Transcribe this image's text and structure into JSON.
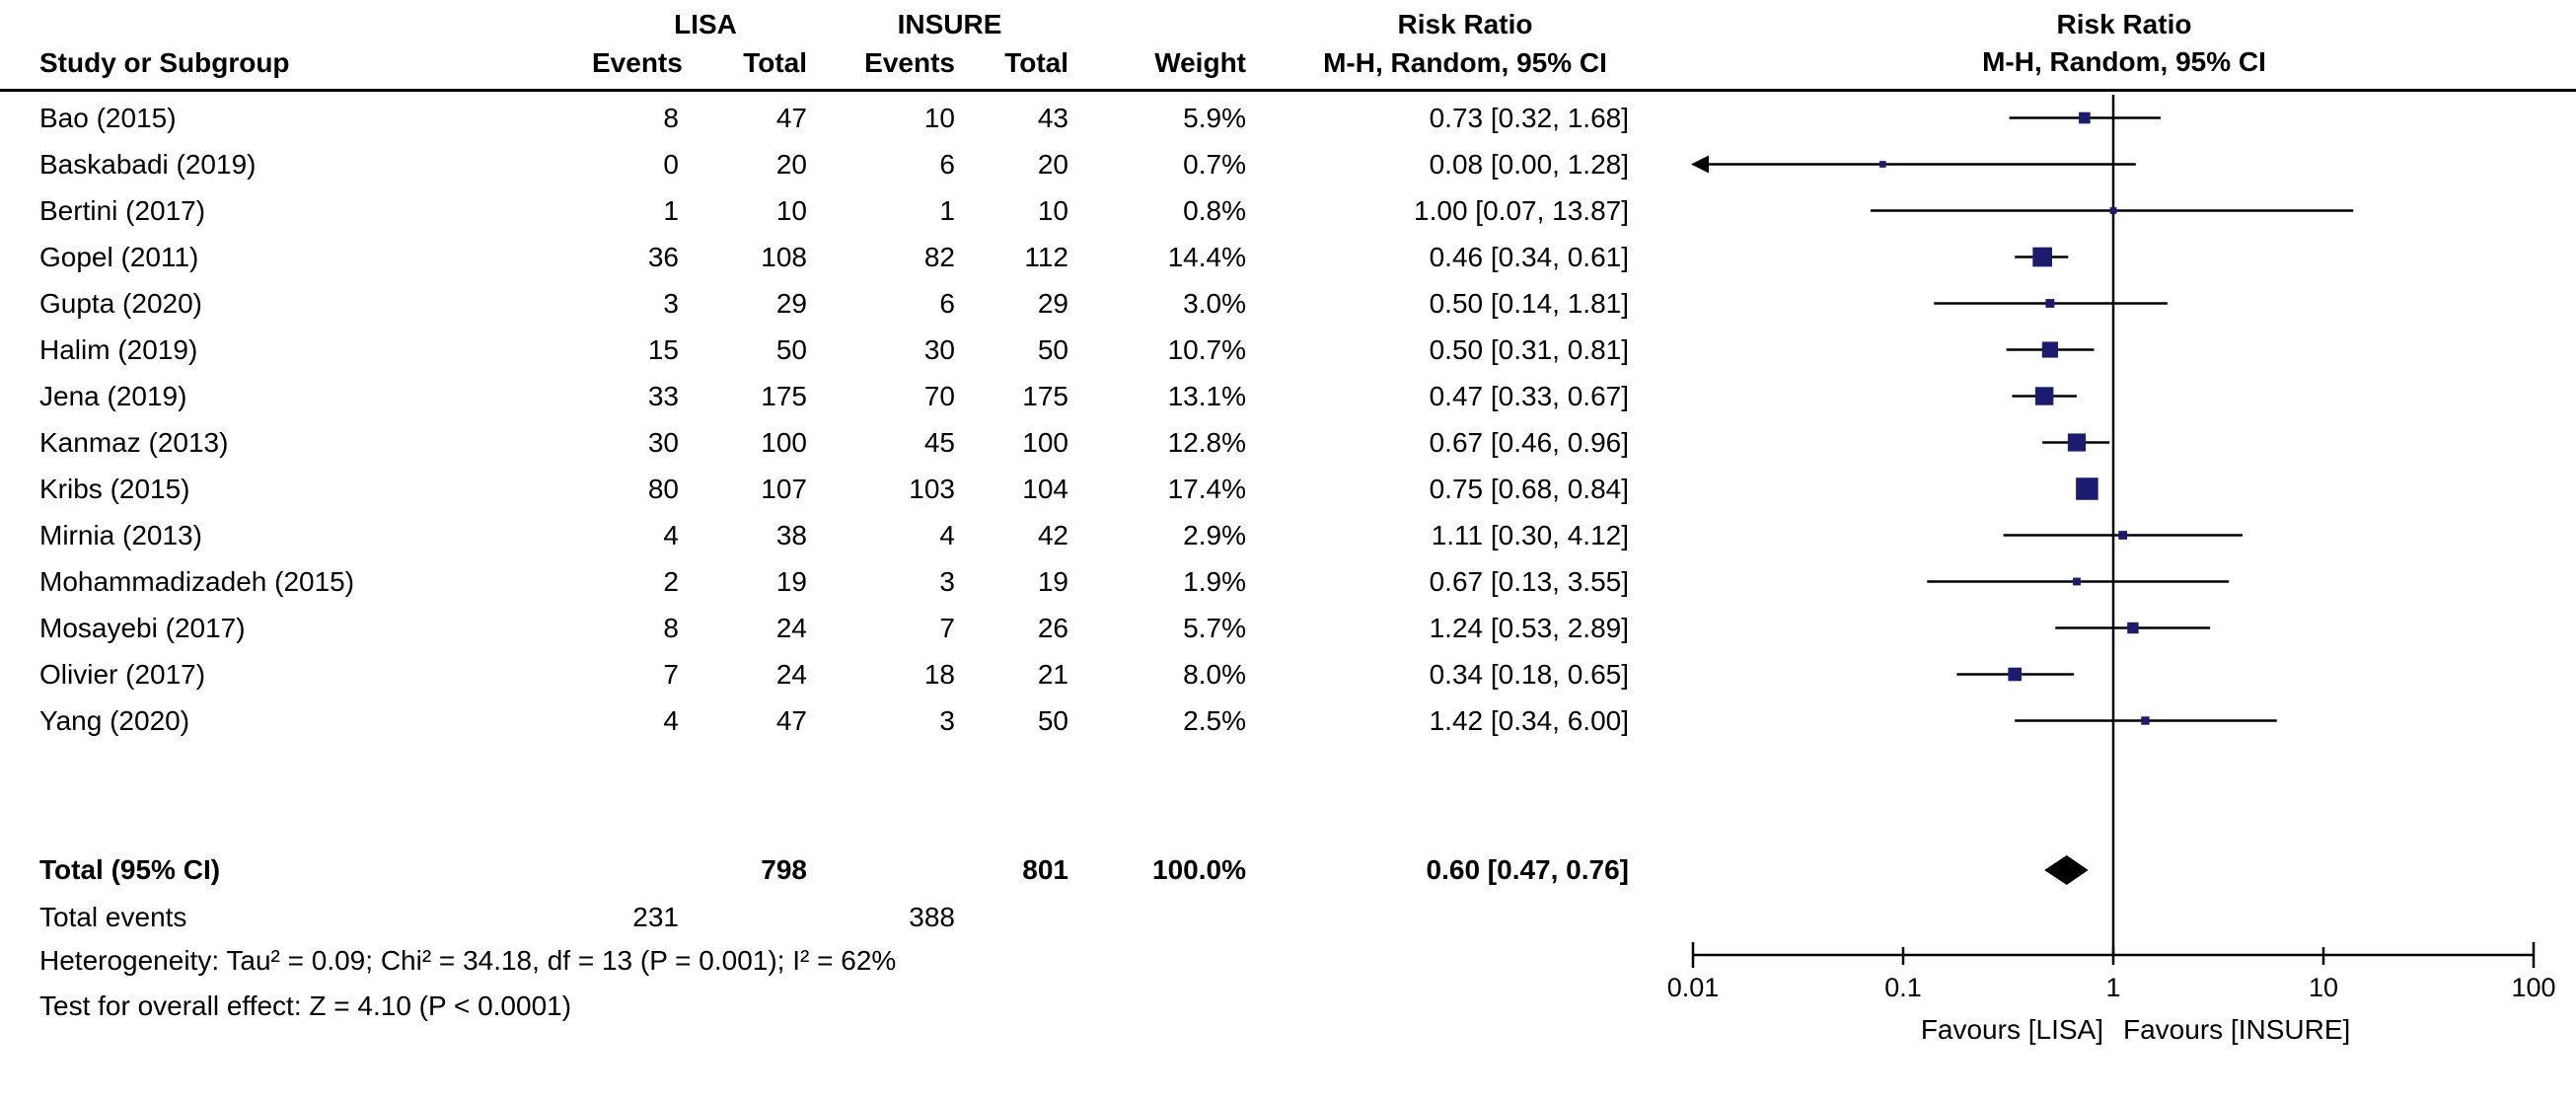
{
  "header": {
    "group1": "LISA",
    "group2": "INSURE",
    "rr_text_col": "Risk Ratio",
    "rr_plot_col": "Risk Ratio",
    "study_col": "Study or Subgroup",
    "events_col1": "Events",
    "total_col1": "Total",
    "events_col2": "Events",
    "total_col2": "Total",
    "weight_col": "Weight",
    "mh_ci_col": "M-H, Random, 95% CI",
    "mh_ci_plot_col": "M-H, Random, 95% CI"
  },
  "chart_data": {
    "type": "scatter",
    "subtype": "forest_plot_meta_analysis",
    "effect_measure": "Risk Ratio",
    "model": "M-H, Random, 95% CI",
    "x_scale": "log10",
    "x_range": [
      0.01,
      100
    ],
    "x_ticks": [
      "0.01",
      "0.1",
      "1",
      "10",
      "100"
    ],
    "favours_left": "Favours [LISA]",
    "favours_right": "Favours [INSURE]",
    "marker_color": "#1b1b6f",
    "studies": [
      {
        "name": "Bao (2015)",
        "events1": "8",
        "total1": "47",
        "events2": "10",
        "total2": "43",
        "weight": "5.9%",
        "weight_val": 5.9,
        "rr": 0.73,
        "lo": 0.32,
        "hi": 1.68,
        "ci_label": "0.73 [0.32, 1.68]",
        "arrow_low": false
      },
      {
        "name": "Baskabadi (2019)",
        "events1": "0",
        "total1": "20",
        "events2": "6",
        "total2": "20",
        "weight": "0.7%",
        "weight_val": 0.7,
        "rr": 0.08,
        "lo": 0.0,
        "hi": 1.28,
        "ci_label": "0.08 [0.00, 1.28]",
        "arrow_low": true
      },
      {
        "name": "Bertini (2017)",
        "events1": "1",
        "total1": "10",
        "events2": "1",
        "total2": "10",
        "weight": "0.8%",
        "weight_val": 0.8,
        "rr": 1.0,
        "lo": 0.07,
        "hi": 13.87,
        "ci_label": "1.00 [0.07, 13.87]",
        "arrow_low": false
      },
      {
        "name": "Gopel (2011)",
        "events1": "36",
        "total1": "108",
        "events2": "82",
        "total2": "112",
        "weight": "14.4%",
        "weight_val": 14.4,
        "rr": 0.46,
        "lo": 0.34,
        "hi": 0.61,
        "ci_label": "0.46 [0.34, 0.61]",
        "arrow_low": false
      },
      {
        "name": "Gupta (2020)",
        "events1": "3",
        "total1": "29",
        "events2": "6",
        "total2": "29",
        "weight": "3.0%",
        "weight_val": 3.0,
        "rr": 0.5,
        "lo": 0.14,
        "hi": 1.81,
        "ci_label": "0.50 [0.14, 1.81]",
        "arrow_low": false
      },
      {
        "name": "Halim (2019)",
        "events1": "15",
        "total1": "50",
        "events2": "30",
        "total2": "50",
        "weight": "10.7%",
        "weight_val": 10.7,
        "rr": 0.5,
        "lo": 0.31,
        "hi": 0.81,
        "ci_label": "0.50 [0.31, 0.81]",
        "arrow_low": false
      },
      {
        "name": "Jena (2019)",
        "events1": "33",
        "total1": "175",
        "events2": "70",
        "total2": "175",
        "weight": "13.1%",
        "weight_val": 13.1,
        "rr": 0.47,
        "lo": 0.33,
        "hi": 0.67,
        "ci_label": "0.47 [0.33, 0.67]",
        "arrow_low": false
      },
      {
        "name": "Kanmaz (2013)",
        "events1": "30",
        "total1": "100",
        "events2": "45",
        "total2": "100",
        "weight": "12.8%",
        "weight_val": 12.8,
        "rr": 0.67,
        "lo": 0.46,
        "hi": 0.96,
        "ci_label": "0.67 [0.46, 0.96]",
        "arrow_low": false
      },
      {
        "name": "Kribs (2015)",
        "events1": "80",
        "total1": "107",
        "events2": "103",
        "total2": "104",
        "weight": "17.4%",
        "weight_val": 17.4,
        "rr": 0.75,
        "lo": 0.68,
        "hi": 0.84,
        "ci_label": "0.75 [0.68, 0.84]",
        "arrow_low": false
      },
      {
        "name": "Mirnia (2013)",
        "events1": "4",
        "total1": "38",
        "events2": "4",
        "total2": "42",
        "weight": "2.9%",
        "weight_val": 2.9,
        "rr": 1.11,
        "lo": 0.3,
        "hi": 4.12,
        "ci_label": "1.11 [0.30, 4.12]",
        "arrow_low": false
      },
      {
        "name": "Mohammadizadeh (2015)",
        "events1": "2",
        "total1": "19",
        "events2": "3",
        "total2": "19",
        "weight": "1.9%",
        "weight_val": 1.9,
        "rr": 0.67,
        "lo": 0.13,
        "hi": 3.55,
        "ci_label": "0.67 [0.13, 3.55]",
        "arrow_low": false
      },
      {
        "name": "Mosayebi (2017)",
        "events1": "8",
        "total1": "24",
        "events2": "7",
        "total2": "26",
        "weight": "5.7%",
        "weight_val": 5.7,
        "rr": 1.24,
        "lo": 0.53,
        "hi": 2.89,
        "ci_label": "1.24 [0.53, 2.89]",
        "arrow_low": false
      },
      {
        "name": "Olivier (2017)",
        "events1": "7",
        "total1": "24",
        "events2": "18",
        "total2": "21",
        "weight": "8.0%",
        "weight_val": 8.0,
        "rr": 0.34,
        "lo": 0.18,
        "hi": 0.65,
        "ci_label": "0.34 [0.18, 0.65]",
        "arrow_low": false
      },
      {
        "name": "Yang (2020)",
        "events1": "4",
        "total1": "47",
        "events2": "3",
        "total2": "50",
        "weight": "2.5%",
        "weight_val": 2.5,
        "rr": 1.42,
        "lo": 0.34,
        "hi": 6.0,
        "ci_label": "1.42 [0.34, 6.00]",
        "arrow_low": false
      }
    ],
    "total_row": {
      "label": "Total (95% CI)",
      "total1": "798",
      "total2": "801",
      "weight": "100.0%",
      "weight_val": 100.0,
      "rr": 0.6,
      "lo": 0.47,
      "hi": 0.76,
      "ci_label": "0.60 [0.47, 0.76]"
    },
    "total_events_row": {
      "label": "Total events",
      "events1": "231",
      "events2": "388"
    },
    "footnotes": {
      "heterogeneity": "Heterogeneity: Tau² = 0.09; Chi² = 34.18, df = 13 (P = 0.001); I² = 62%",
      "overall_effect": "Test for overall effect: Z = 4.10 (P < 0.0001)"
    }
  }
}
